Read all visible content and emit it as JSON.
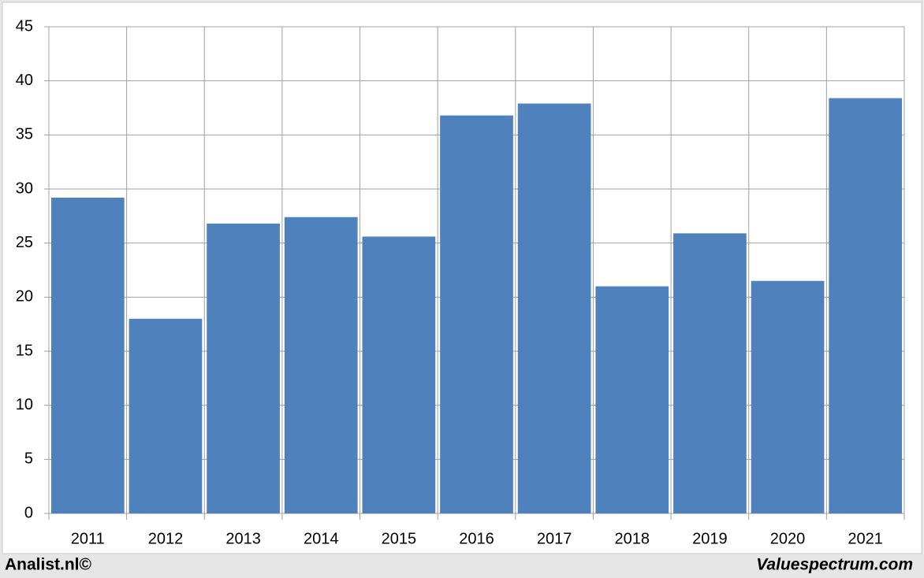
{
  "chart_data": {
    "type": "bar",
    "categories": [
      "2011",
      "2012",
      "2013",
      "2014",
      "2015",
      "2016",
      "2017",
      "2018",
      "2019",
      "2020",
      "2021"
    ],
    "values": [
      29.2,
      18.0,
      26.8,
      27.4,
      25.6,
      36.8,
      37.9,
      21.0,
      25.9,
      21.5,
      38.4
    ],
    "color": "#4f81bd",
    "ylim": [
      0,
      45
    ],
    "yticks": [
      0,
      5,
      10,
      15,
      20,
      25,
      30,
      35,
      40,
      45
    ],
    "grid": true,
    "source": "Analist.nl©",
    "watermark": "Valuespectrum.com"
  }
}
